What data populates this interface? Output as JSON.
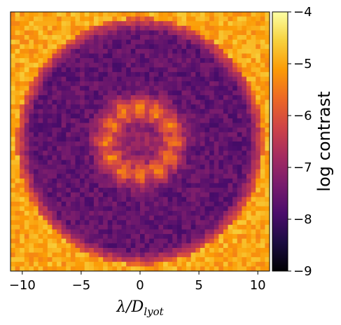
{
  "chart_data": {
    "type": "heatmap",
    "title": "",
    "xlabel_main": "λ/D",
    "xlabel_subscript": "lyot",
    "ylabel": "",
    "xlim": [
      -11,
      11
    ],
    "ylim": [
      -11,
      11
    ],
    "x_ticks": [
      -10,
      -5,
      0,
      5,
      10
    ],
    "x_tick_labels": [
      "−10",
      "−5",
      "0",
      "5",
      "10"
    ],
    "y_ticks_shown": false,
    "colormap": "inferno",
    "colorbar": {
      "label": "log contrast",
      "range": [
        -9,
        -4
      ],
      "ticks": [
        -9,
        -8,
        -7,
        -6,
        -5,
        -4
      ],
      "tick_labels": [
        "−9",
        "−8",
        "−7",
        "−6",
        "−5",
        "−4"
      ]
    },
    "field_description": {
      "dark_hole_outer_radius": 10.5,
      "dark_hole_level": -7.6,
      "central_ring_radius": 2.8,
      "central_ring_petals": 12,
      "central_ring_level": -5.4,
      "center_level": -6.8,
      "outside_level": -5.0
    }
  },
  "colors": {
    "inferno_stops": [
      "#000004",
      "#1b0c41",
      "#4a0c6b",
      "#781c6d",
      "#a52c60",
      "#cf4446",
      "#ed6925",
      "#fb9b06",
      "#f7d13d",
      "#fcffa4"
    ]
  }
}
